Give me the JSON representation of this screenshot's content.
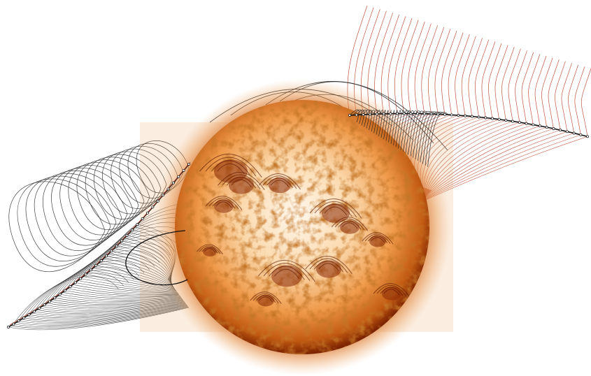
{
  "image": {
    "subject": "sun",
    "colors": {
      "background": "#ffffff",
      "sun_core": "#fff6ea",
      "sun_mid": "#f29a45",
      "sun_dark": "#8a2a05",
      "corona": "#c8560f",
      "field_line_dark": "#222222",
      "field_line_red": "#b8432a"
    }
  }
}
